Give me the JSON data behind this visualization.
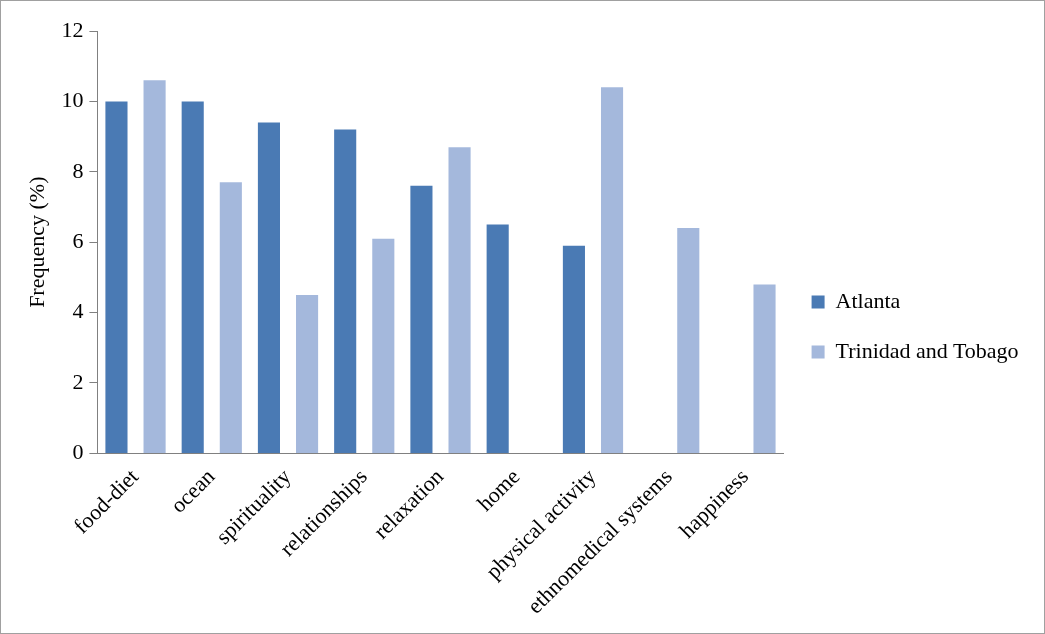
{
  "chart_data": {
    "type": "bar",
    "ylabel": "Frequency (%)",
    "categories": [
      "food-diet",
      "ocean",
      "spirituality",
      "relationships",
      "relaxation",
      "home",
      "physical activity",
      "ethnomedical systems",
      "happiness"
    ],
    "series": [
      {
        "name": "Atlanta",
        "color": "#4a7ab4",
        "values": [
          10.0,
          10.0,
          9.4,
          9.2,
          7.6,
          6.5,
          5.9,
          null,
          null
        ]
      },
      {
        "name": "Trinidad and Tobago",
        "color": "#a4b8dc",
        "values": [
          10.6,
          7.7,
          4.5,
          6.1,
          8.7,
          null,
          10.4,
          6.4,
          4.8
        ]
      }
    ],
    "ylim": [
      0,
      12
    ],
    "yticks": [
      0,
      2,
      4,
      6,
      8,
      10,
      12
    ],
    "grid": false,
    "legend": "right"
  }
}
